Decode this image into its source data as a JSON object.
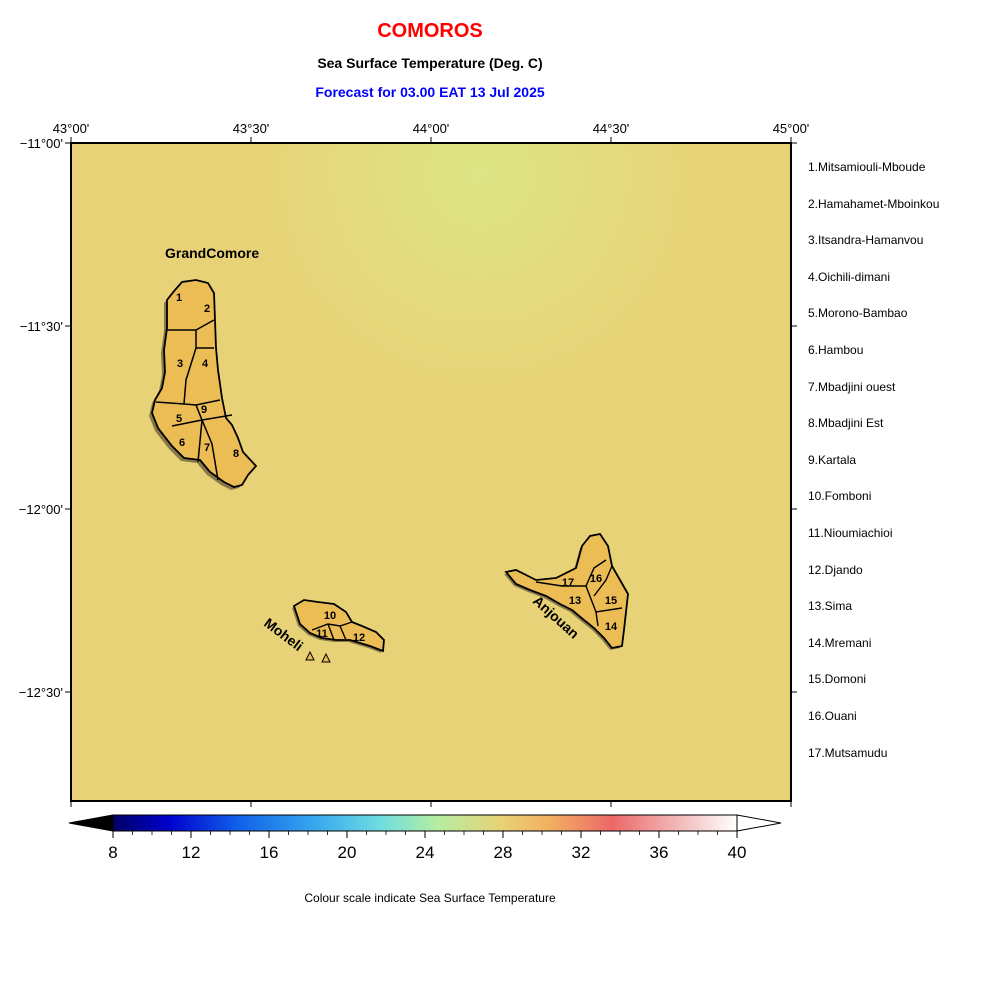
{
  "title": "COMOROS",
  "subtitle": "Sea Surface Temperature (Deg. C)",
  "forecast": "Forecast for  03.00 EAT 13 Jul 2025",
  "caption": "Colour scale indicate Sea Surface Temperature",
  "lon_ticks": [
    "43°00'",
    "43°30'",
    "44°00'",
    "44°30'",
    "45°00'"
  ],
  "lat_ticks": [
    "−11°00'",
    "−11°30'",
    "−12°00'",
    "−12°30'"
  ],
  "islands": {
    "grand_comore": "GrandComore",
    "moheli": "Moheli",
    "anjouan": "Anjouan"
  },
  "region_numbers": [
    "1",
    "2",
    "3",
    "4",
    "5",
    "6",
    "7",
    "8",
    "9",
    "10",
    "11",
    "12",
    "13",
    "14",
    "15",
    "16",
    "17"
  ],
  "regions": [
    "1.Mitsamiouli-Mboude",
    "2.Hamahamet-Mboinkou",
    "3.Itsandra-Hamanvou",
    "4.Oichili-dimani",
    "5.Morono-Bambao",
    "6.Hambou",
    "7.Mbadjini ouest",
    "8.Mbadjini Est",
    "9.Kartala",
    "10.Fomboni",
    "11.Nioumiachioi",
    "12.Djando",
    "13.Sima",
    "14.Mremani",
    "15.Domoni",
    "16.Ouani",
    "17.Mutsamudu"
  ],
  "colorbar": {
    "ticks": [
      "8",
      "12",
      "16",
      "20",
      "24",
      "28",
      "32",
      "36",
      "40"
    ],
    "min": 8,
    "max": 40
  },
  "colors": {
    "sea": "#e8d277",
    "sea_cool": "#dde383",
    "land": "#ecbc55",
    "title": "#ff0000",
    "forecast": "#0000ff"
  }
}
